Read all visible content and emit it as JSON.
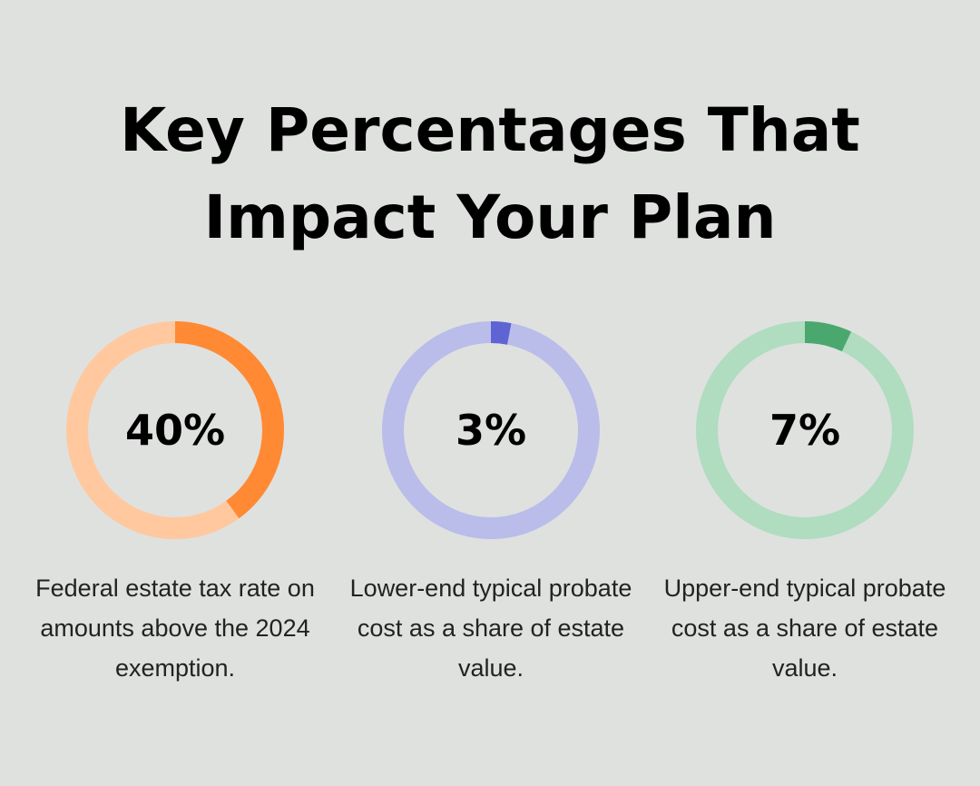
{
  "title_lines": [
    "Key Percentages That",
    "Impact Your Plan"
  ],
  "chart_data": [
    {
      "type": "pie",
      "variant": "donut",
      "value": 40,
      "label": "40%",
      "caption": "Federal estate tax rate on amounts above the 2024 exemption.",
      "color": "#ff8a33",
      "track_color": "#ffc89e"
    },
    {
      "type": "pie",
      "variant": "donut",
      "value": 3,
      "label": "3%",
      "caption": "Lower-end typical probate cost as a share of estate value.",
      "color": "#5f64d4",
      "track_color": "#babde9"
    },
    {
      "type": "pie",
      "variant": "donut",
      "value": 7,
      "label": "7%",
      "caption": "Upper-end typical probate cost as a share of estate value.",
      "color": "#4aa86e",
      "track_color": "#b0dcc0"
    }
  ]
}
